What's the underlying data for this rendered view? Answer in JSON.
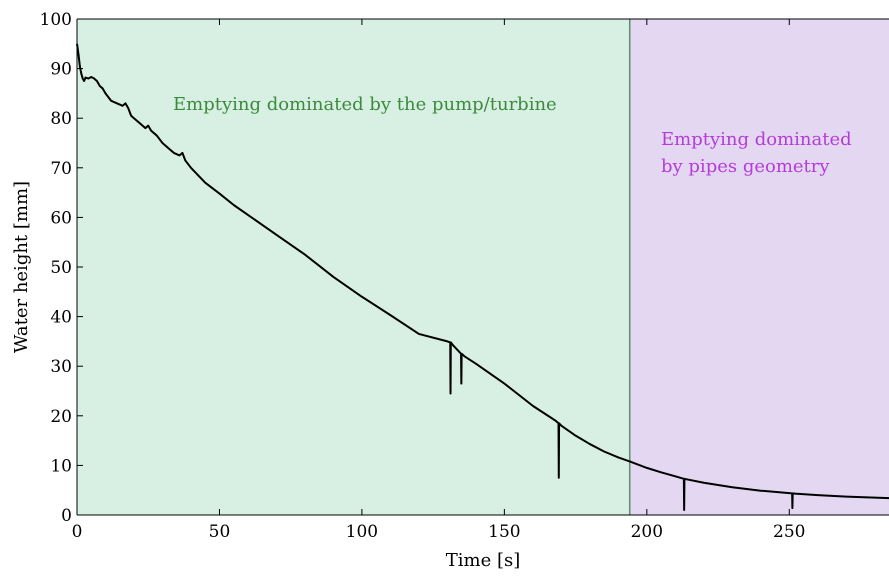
{
  "chart_data": {
    "type": "line",
    "xlabel": "Time [s]",
    "ylabel": "Water height [mm]",
    "xlim": [
      0,
      285
    ],
    "ylim": [
      0,
      100
    ],
    "xticks": [
      0,
      50,
      100,
      150,
      200,
      250
    ],
    "yticks": [
      0,
      10,
      20,
      30,
      40,
      50,
      60,
      70,
      80,
      90,
      100
    ],
    "grid": false,
    "regions": [
      {
        "x": [
          0,
          194
        ],
        "color": "#d8f0e3",
        "label": "Emptying dominated by the pump/turbine",
        "label_color": "#3c8a3c"
      },
      {
        "x": [
          194,
          285
        ],
        "color": "#e4d7f2",
        "label_lines": [
          "Emptying dominated",
          "by pipes geometry"
        ],
        "label_color": "#b43cd8"
      }
    ],
    "divider": {
      "x": 194,
      "color": "#5a8f6a"
    },
    "series": [
      {
        "color": "#000000",
        "x": [
          0,
          0.5,
          1,
          1.5,
          2,
          2.5,
          3,
          4,
          5,
          6,
          7,
          8,
          9,
          10,
          12,
          14,
          16,
          17,
          18,
          19,
          20,
          22,
          24,
          25,
          26,
          28,
          30,
          32,
          34,
          36,
          37,
          38,
          40,
          45,
          50,
          55,
          60,
          70,
          80,
          90,
          100,
          110,
          120,
          130,
          131,
          131.1,
          131.2,
          132,
          134,
          134.8,
          134.9,
          135,
          136,
          140,
          150,
          160,
          168,
          169,
          169.1,
          169.2,
          170,
          175,
          180,
          185,
          190,
          194,
          200,
          205,
          210,
          213,
          213.1,
          213.2,
          214,
          220,
          230,
          240,
          250,
          251,
          251.1,
          251.2,
          252,
          260,
          270,
          280,
          285
        ],
        "y": [
          95,
          93,
          90.5,
          89,
          88,
          87.5,
          88.2,
          88,
          88.3,
          88,
          87.5,
          86.5,
          86,
          85,
          83.5,
          83,
          82.5,
          83,
          82,
          80.5,
          80,
          79,
          78,
          78.5,
          77.5,
          76.5,
          75,
          74,
          73,
          72.5,
          73,
          71.5,
          70,
          67,
          64.8,
          62.5,
          60.5,
          56.5,
          52.5,
          48,
          44,
          40.3,
          36.5,
          35,
          34.8,
          24.5,
          34.8,
          34.2,
          33,
          32.5,
          26.5,
          32.5,
          32,
          30.5,
          26.5,
          22,
          19,
          18.5,
          7.5,
          18.5,
          18,
          16,
          14.3,
          12.8,
          11.6,
          10.8,
          9.5,
          8.6,
          7.8,
          7.3,
          1,
          7.3,
          7.2,
          6.5,
          5.6,
          4.9,
          4.4,
          4.35,
          1.4,
          4.35,
          4.3,
          4.0,
          3.7,
          3.5,
          3.4
        ]
      }
    ]
  }
}
